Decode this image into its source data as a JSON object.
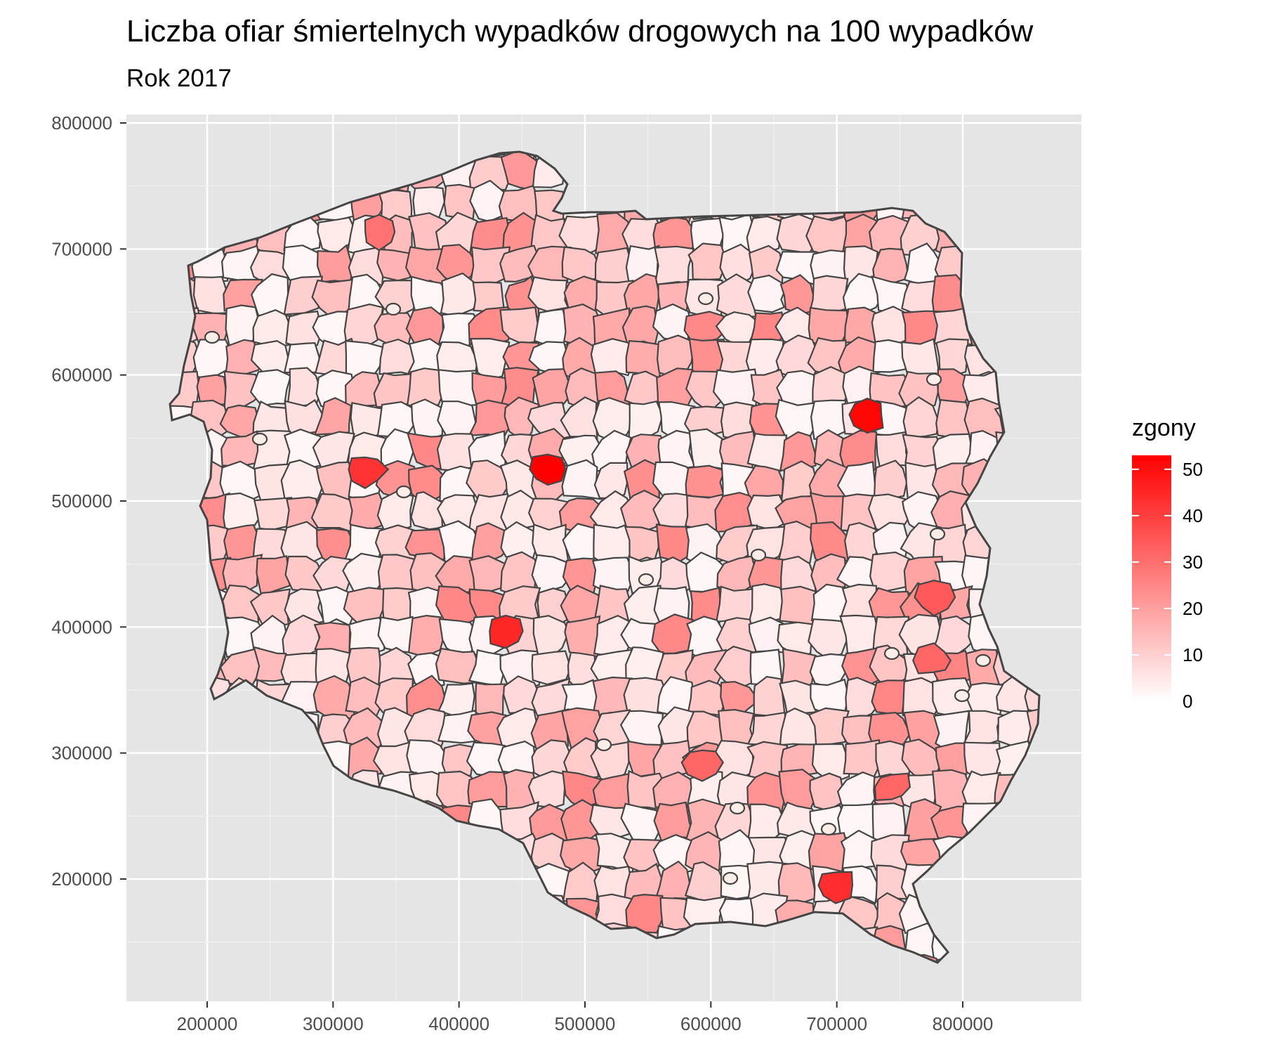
{
  "title": "Liczba ofiar śmiertelnych wypadków drogowych na 100 wypadków",
  "subtitle": "Rok 2017",
  "colors": {
    "panel": "#e5e5e5",
    "grid": "#ffffff",
    "border": "#454545",
    "low": "#ffffff",
    "high": "#ff0000"
  },
  "chart_data": {
    "type": "choropleth",
    "x_ticks": [
      "200000",
      "300000",
      "400000",
      "500000",
      "600000",
      "700000",
      "800000"
    ],
    "y_ticks": [
      "800000",
      "700000",
      "600000",
      "500000",
      "400000",
      "300000",
      "200000"
    ],
    "xlim": [
      170000,
      860000
    ],
    "ylim": [
      130000,
      800000
    ],
    "legend": {
      "title": "zgony",
      "ticks": [
        "0",
        "10",
        "20",
        "30",
        "40",
        "50"
      ],
      "range": [
        0,
        53
      ],
      "position": "right"
    }
  }
}
